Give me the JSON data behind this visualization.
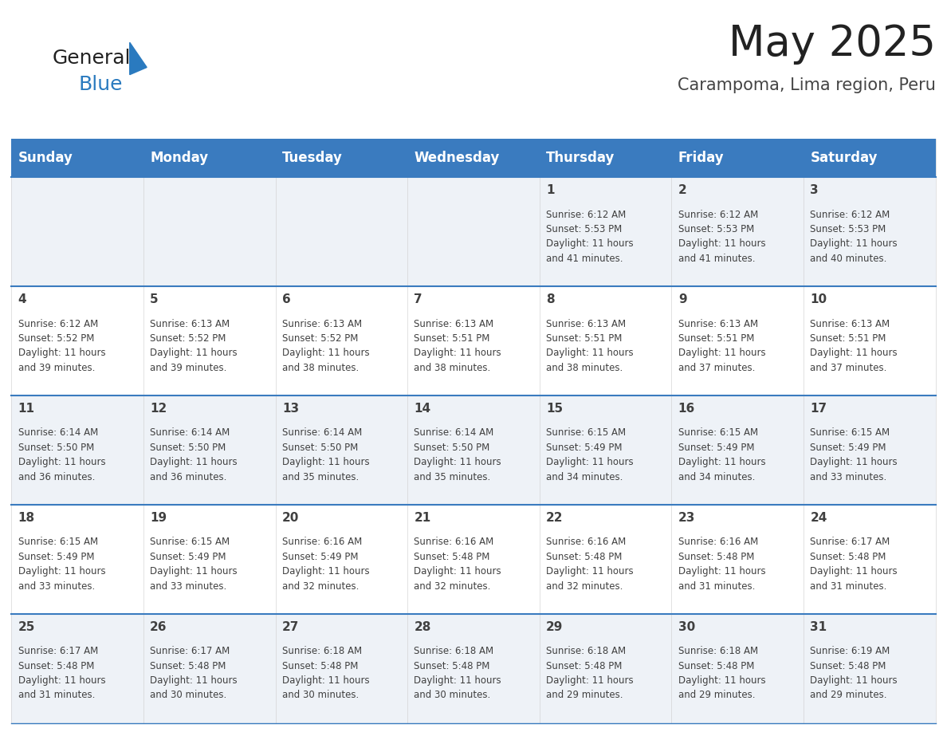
{
  "title": "May 2025",
  "subtitle": "Carampoma, Lima region, Peru",
  "header_bg_color": "#3a7bbf",
  "header_text_color": "#ffffff",
  "cell_bg_even": "#eef2f7",
  "cell_bg_odd": "#ffffff",
  "day_names": [
    "Sunday",
    "Monday",
    "Tuesday",
    "Wednesday",
    "Thursday",
    "Friday",
    "Saturday"
  ],
  "days": [
    {
      "day": 1,
      "col": 4,
      "row": 0,
      "sunrise": "6:12 AM",
      "sunset": "5:53 PM",
      "daylight_hours": 11,
      "daylight_minutes": 41
    },
    {
      "day": 2,
      "col": 5,
      "row": 0,
      "sunrise": "6:12 AM",
      "sunset": "5:53 PM",
      "daylight_hours": 11,
      "daylight_minutes": 41
    },
    {
      "day": 3,
      "col": 6,
      "row": 0,
      "sunrise": "6:12 AM",
      "sunset": "5:53 PM",
      "daylight_hours": 11,
      "daylight_minutes": 40
    },
    {
      "day": 4,
      "col": 0,
      "row": 1,
      "sunrise": "6:12 AM",
      "sunset": "5:52 PM",
      "daylight_hours": 11,
      "daylight_minutes": 39
    },
    {
      "day": 5,
      "col": 1,
      "row": 1,
      "sunrise": "6:13 AM",
      "sunset": "5:52 PM",
      "daylight_hours": 11,
      "daylight_minutes": 39
    },
    {
      "day": 6,
      "col": 2,
      "row": 1,
      "sunrise": "6:13 AM",
      "sunset": "5:52 PM",
      "daylight_hours": 11,
      "daylight_minutes": 38
    },
    {
      "day": 7,
      "col": 3,
      "row": 1,
      "sunrise": "6:13 AM",
      "sunset": "5:51 PM",
      "daylight_hours": 11,
      "daylight_minutes": 38
    },
    {
      "day": 8,
      "col": 4,
      "row": 1,
      "sunrise": "6:13 AM",
      "sunset": "5:51 PM",
      "daylight_hours": 11,
      "daylight_minutes": 38
    },
    {
      "day": 9,
      "col": 5,
      "row": 1,
      "sunrise": "6:13 AM",
      "sunset": "5:51 PM",
      "daylight_hours": 11,
      "daylight_minutes": 37
    },
    {
      "day": 10,
      "col": 6,
      "row": 1,
      "sunrise": "6:13 AM",
      "sunset": "5:51 PM",
      "daylight_hours": 11,
      "daylight_minutes": 37
    },
    {
      "day": 11,
      "col": 0,
      "row": 2,
      "sunrise": "6:14 AM",
      "sunset": "5:50 PM",
      "daylight_hours": 11,
      "daylight_minutes": 36
    },
    {
      "day": 12,
      "col": 1,
      "row": 2,
      "sunrise": "6:14 AM",
      "sunset": "5:50 PM",
      "daylight_hours": 11,
      "daylight_minutes": 36
    },
    {
      "day": 13,
      "col": 2,
      "row": 2,
      "sunrise": "6:14 AM",
      "sunset": "5:50 PM",
      "daylight_hours": 11,
      "daylight_minutes": 35
    },
    {
      "day": 14,
      "col": 3,
      "row": 2,
      "sunrise": "6:14 AM",
      "sunset": "5:50 PM",
      "daylight_hours": 11,
      "daylight_minutes": 35
    },
    {
      "day": 15,
      "col": 4,
      "row": 2,
      "sunrise": "6:15 AM",
      "sunset": "5:49 PM",
      "daylight_hours": 11,
      "daylight_minutes": 34
    },
    {
      "day": 16,
      "col": 5,
      "row": 2,
      "sunrise": "6:15 AM",
      "sunset": "5:49 PM",
      "daylight_hours": 11,
      "daylight_minutes": 34
    },
    {
      "day": 17,
      "col": 6,
      "row": 2,
      "sunrise": "6:15 AM",
      "sunset": "5:49 PM",
      "daylight_hours": 11,
      "daylight_minutes": 33
    },
    {
      "day": 18,
      "col": 0,
      "row": 3,
      "sunrise": "6:15 AM",
      "sunset": "5:49 PM",
      "daylight_hours": 11,
      "daylight_minutes": 33
    },
    {
      "day": 19,
      "col": 1,
      "row": 3,
      "sunrise": "6:15 AM",
      "sunset": "5:49 PM",
      "daylight_hours": 11,
      "daylight_minutes": 33
    },
    {
      "day": 20,
      "col": 2,
      "row": 3,
      "sunrise": "6:16 AM",
      "sunset": "5:49 PM",
      "daylight_hours": 11,
      "daylight_minutes": 32
    },
    {
      "day": 21,
      "col": 3,
      "row": 3,
      "sunrise": "6:16 AM",
      "sunset": "5:48 PM",
      "daylight_hours": 11,
      "daylight_minutes": 32
    },
    {
      "day": 22,
      "col": 4,
      "row": 3,
      "sunrise": "6:16 AM",
      "sunset": "5:48 PM",
      "daylight_hours": 11,
      "daylight_minutes": 32
    },
    {
      "day": 23,
      "col": 5,
      "row": 3,
      "sunrise": "6:16 AM",
      "sunset": "5:48 PM",
      "daylight_hours": 11,
      "daylight_minutes": 31
    },
    {
      "day": 24,
      "col": 6,
      "row": 3,
      "sunrise": "6:17 AM",
      "sunset": "5:48 PM",
      "daylight_hours": 11,
      "daylight_minutes": 31
    },
    {
      "day": 25,
      "col": 0,
      "row": 4,
      "sunrise": "6:17 AM",
      "sunset": "5:48 PM",
      "daylight_hours": 11,
      "daylight_minutes": 31
    },
    {
      "day": 26,
      "col": 1,
      "row": 4,
      "sunrise": "6:17 AM",
      "sunset": "5:48 PM",
      "daylight_hours": 11,
      "daylight_minutes": 30
    },
    {
      "day": 27,
      "col": 2,
      "row": 4,
      "sunrise": "6:18 AM",
      "sunset": "5:48 PM",
      "daylight_hours": 11,
      "daylight_minutes": 30
    },
    {
      "day": 28,
      "col": 3,
      "row": 4,
      "sunrise": "6:18 AM",
      "sunset": "5:48 PM",
      "daylight_hours": 11,
      "daylight_minutes": 30
    },
    {
      "day": 29,
      "col": 4,
      "row": 4,
      "sunrise": "6:18 AM",
      "sunset": "5:48 PM",
      "daylight_hours": 11,
      "daylight_minutes": 29
    },
    {
      "day": 30,
      "col": 5,
      "row": 4,
      "sunrise": "6:18 AM",
      "sunset": "5:48 PM",
      "daylight_hours": 11,
      "daylight_minutes": 29
    },
    {
      "day": 31,
      "col": 6,
      "row": 4,
      "sunrise": "6:19 AM",
      "sunset": "5:48 PM",
      "daylight_hours": 11,
      "daylight_minutes": 29
    }
  ],
  "n_rows": 5,
  "n_cols": 7,
  "logo_text_general": "General",
  "logo_text_blue": "Blue",
  "logo_triangle_color": "#2a7abf",
  "text_color_dark": "#404040",
  "line_color": "#3a7bbf",
  "title_fontsize": 38,
  "subtitle_fontsize": 15,
  "header_fontsize": 12,
  "day_num_fontsize": 11,
  "cell_text_fontsize": 8.5
}
